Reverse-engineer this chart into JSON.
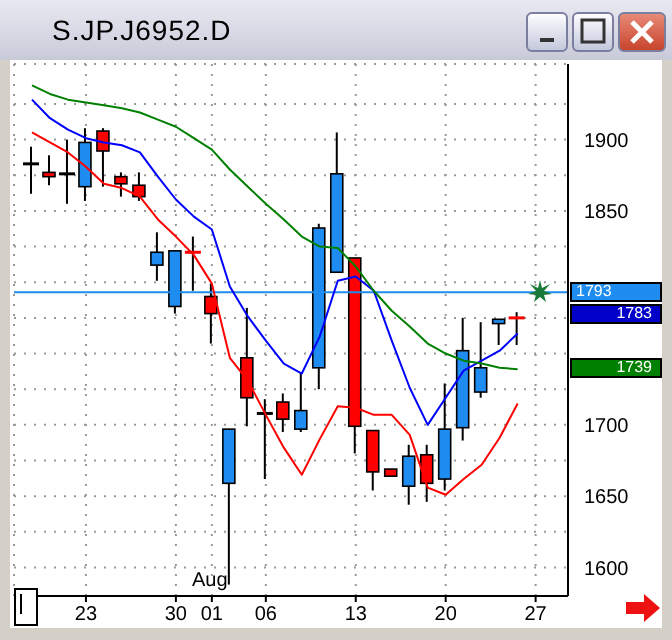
{
  "chart_data": {
    "type": "candlestick",
    "title": "S.JP.J6952.D",
    "categories": [
      null,
      null,
      null,
      "23",
      null,
      null,
      null,
      null,
      "30",
      null,
      "01",
      null,
      null,
      "06",
      null,
      null,
      null,
      null,
      "13",
      null,
      null,
      null,
      null,
      "20",
      null,
      null,
      null,
      null,
      "27"
    ],
    "ohlc": [
      [
        1883,
        1895,
        1862,
        1883
      ],
      [
        1877,
        1889,
        1868,
        1874
      ],
      [
        1876,
        1900,
        1855,
        1876
      ],
      [
        1867,
        1908,
        1857,
        1898
      ],
      [
        1906,
        1908,
        1867,
        1892
      ],
      [
        1874,
        1877,
        1860,
        1869
      ],
      [
        1868,
        1877,
        1857,
        1860
      ],
      [
        1812,
        1835,
        1801,
        1821
      ],
      [
        1783,
        1822,
        1778,
        1822
      ],
      [
        1821,
        1832,
        1794,
        1819
      ],
      [
        1790,
        1799,
        1757,
        1778
      ],
      [
        1659,
        1697,
        1588,
        1697
      ],
      [
        1747,
        1782,
        1699,
        1719
      ],
      [
        1708,
        1718,
        1662,
        1708
      ],
      [
        1716,
        1722,
        1695,
        1704
      ],
      [
        1697,
        1737,
        1695,
        1710
      ],
      [
        1740,
        1841,
        1725,
        1838
      ],
      [
        1807,
        1905,
        1807,
        1876
      ],
      [
        1817,
        1817,
        1680,
        1699
      ],
      [
        1696,
        1696,
        1654,
        1667
      ],
      [
        1669,
        1669,
        1664,
        1664
      ],
      [
        1657,
        1686,
        1644,
        1678
      ],
      [
        1679,
        1686,
        1646,
        1659
      ],
      [
        1662,
        1729,
        1654,
        1697
      ],
      [
        1698,
        1775,
        1689,
        1752
      ],
      [
        1723,
        1772,
        1719,
        1740
      ],
      [
        1771,
        1774,
        1756,
        1774
      ],
      [
        1775,
        1779,
        1756,
        1773
      ],
      null
    ],
    "colors": [
      "#000000",
      "#ff0000",
      "#000000",
      "#1e8cf0",
      "#ff0000",
      "#ff0000",
      "#ff0000",
      "#1e8cf0",
      "#1e8cf0",
      "#ff0000",
      "#ff0000",
      "#1e8cf0",
      "#ff0000",
      "#000000",
      "#ff0000",
      "#1e8cf0",
      "#1e8cf0",
      "#1e8cf0",
      "#ff0000",
      "#ff0000",
      "#ff0000",
      "#1e8cf0",
      "#ff0000",
      "#1e8cf0",
      "#1e8cf0",
      "#1e8cf0",
      "#1e8cf0",
      "#ff0000",
      null
    ],
    "series": [
      {
        "type": "line",
        "color": "#ff0000",
        "values": [
          1905,
          1898,
          1891,
          1881,
          1869,
          1866,
          1860,
          1844,
          1832,
          1819,
          1799,
          1747,
          1731,
          1707,
          1684,
          1665,
          1690,
          1713,
          1712,
          1707,
          1707,
          1693,
          1656,
          1651,
          1662,
          1672,
          1691,
          1715,
          null
        ]
      },
      {
        "type": "line",
        "color": "#0000ff",
        "values": [
          1928,
          1915,
          1907,
          1901,
          1898,
          1896,
          1891,
          1874,
          1858,
          1846,
          1837,
          1797,
          1776,
          1759,
          1743,
          1736,
          1762,
          1801,
          1804,
          1794,
          1759,
          1726,
          1700,
          1719,
          1738,
          1745,
          1752,
          1764,
          null
        ]
      },
      {
        "type": "line",
        "color": "#008000",
        "values": [
          1938,
          1932,
          1928,
          1926,
          1924,
          1922,
          1919,
          1914,
          1909,
          1901,
          1893,
          1879,
          1867,
          1855,
          1844,
          1832,
          1825,
          1824,
          1811,
          1794,
          1780,
          1769,
          1757,
          1750,
          1745,
          1743,
          1740,
          1739,
          null
        ]
      }
    ],
    "ylim": [
      1580,
      1953
    ],
    "yticks": [
      1600,
      {
        "value": 1625,
        "label": null
      },
      1650,
      {
        "value": 1675,
        "label": null
      },
      1700,
      {
        "value": 1725,
        "label": null
      },
      {
        "value": 1750,
        "label": null
      },
      {
        "value": 1775,
        "label": null
      },
      {
        "value": 1800,
        "label": null
      },
      {
        "value": 1825,
        "label": null
      },
      1850,
      {
        "value": 1875,
        "label": null
      },
      1900,
      {
        "value": 1925,
        "label": null
      }
    ],
    "grid": true,
    "ref_lines": [
      {
        "axis": "y",
        "value": 1793,
        "label": "1793",
        "color": "#1e8cf0"
      }
    ],
    "annotations": [
      "1783",
      "1739",
      "Aug"
    ]
  }
}
